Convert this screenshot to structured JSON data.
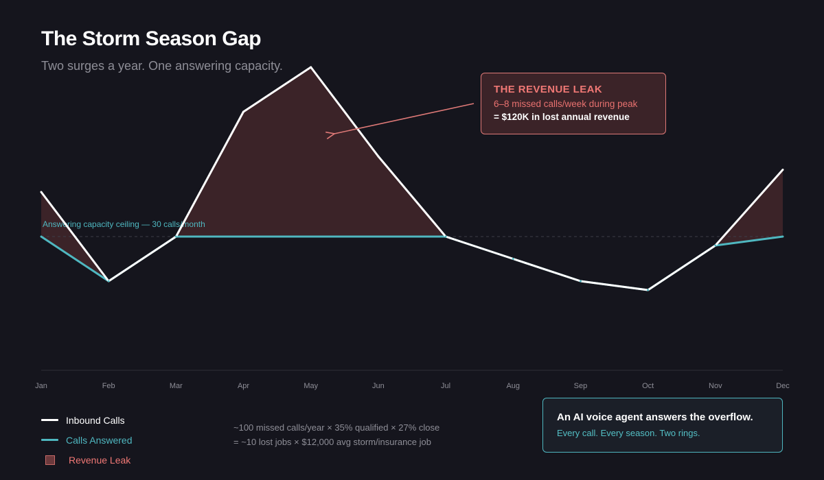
{
  "header": {
    "title": "The Storm Season Gap",
    "subtitle": "Two surges a year. One answering capacity."
  },
  "callout": {
    "title": "THE REVENUE LEAK",
    "line1": "6–8 missed calls/week during peak",
    "line2": "= $120K in lost annual revenue"
  },
  "legend": {
    "inbound": "Inbound Calls",
    "answered": "Calls Answered",
    "leak": "Revenue Leak"
  },
  "note": {
    "line1": "~100 missed calls/year × 35% qualified × 27% close",
    "line2": "= ~10 lost jobs × $12,000 avg storm/insurance job"
  },
  "cta": {
    "title": "An AI voice agent answers the overflow.",
    "subtitle": "Every call. Every season. Two rings."
  },
  "colors": {
    "background": "#15151d",
    "inbound": "#ffffff",
    "answered": "#4fb7c0",
    "leak_fill": "#3b2328",
    "leak_accent": "#f07875"
  },
  "chart_data": {
    "type": "line",
    "title": "The Storm Season Gap",
    "subtitle": "Two surges a year. One answering capacity.",
    "x": [
      "Jan",
      "Feb",
      "Mar",
      "Apr",
      "May",
      "Jun",
      "Jul",
      "Aug",
      "Sep",
      "Oct",
      "Nov",
      "Dec"
    ],
    "ylim": [
      0,
      60
    ],
    "grid": false,
    "capacity": {
      "value": 30,
      "label": "Answering capacity ceiling — 30 calls/month"
    },
    "series": [
      {
        "name": "Inbound Calls",
        "values": [
          40,
          20,
          30,
          58,
          68,
          48,
          30,
          25,
          20,
          18,
          28,
          45
        ]
      },
      {
        "name": "Calls Answered",
        "values": [
          30,
          20,
          30,
          30,
          30,
          30,
          30,
          25,
          20,
          18,
          28,
          30
        ]
      }
    ],
    "area": {
      "name": "Revenue Leak",
      "between": [
        "Inbound Calls",
        "Calls Answered"
      ]
    }
  }
}
